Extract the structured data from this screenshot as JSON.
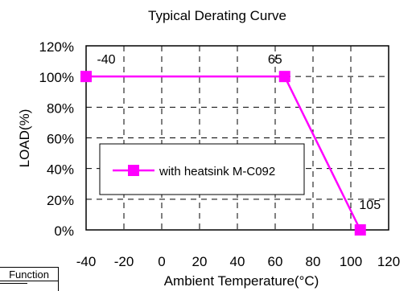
{
  "chart_data": {
    "type": "line",
    "title": "Typical Derating Curve",
    "xlabel": "Ambient Temperature(°C)",
    "ylabel": "LOAD(%)",
    "xlim": [
      -40,
      120
    ],
    "ylim": [
      0,
      120
    ],
    "x_ticks": [
      "-40",
      "-20",
      "0",
      "20",
      "40",
      "60",
      "80",
      "100",
      "120"
    ],
    "y_ticks": [
      "0%",
      "20%",
      "40%",
      "60%",
      "80%",
      "100%",
      "120%"
    ],
    "grid": true,
    "legend_position": "center-left",
    "series": [
      {
        "name": "with heatsink M-C092",
        "color": "#ff00ff",
        "marker": "square",
        "x": [
          -40,
          65,
          105
        ],
        "y": [
          100,
          100,
          0
        ]
      }
    ],
    "point_labels": [
      "-40",
      "65",
      "105"
    ]
  },
  "side_box": {
    "label": "Function"
  }
}
